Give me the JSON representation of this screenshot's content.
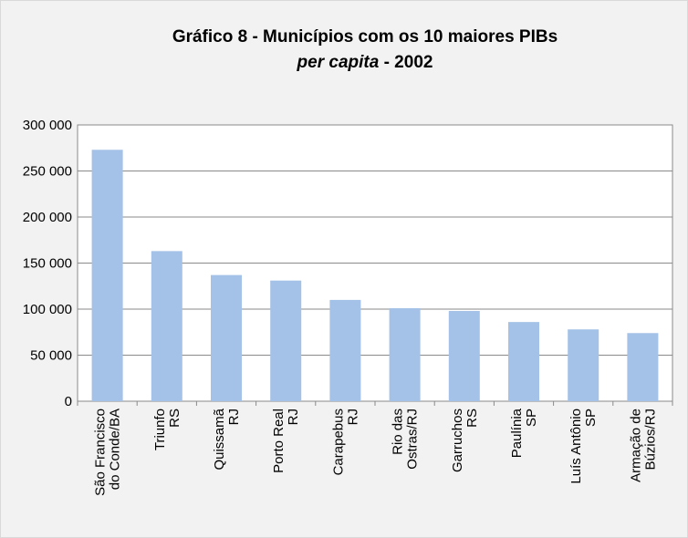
{
  "chart_data": {
    "type": "bar",
    "title": "Gráfico 8 - Municípios com os 10 maiores PIBs",
    "subtitle": [
      "per capita",
      " - 2002"
    ],
    "categories": [
      [
        "São Francisco",
        "do Conde/BA"
      ],
      [
        "Triunfo",
        "RS"
      ],
      [
        "Quissamã",
        "RJ"
      ],
      [
        "Porto Real",
        "RJ"
      ],
      [
        "Carapebus",
        "RJ"
      ],
      [
        "Rio das",
        "Ostras/RJ"
      ],
      [
        "Garruchos",
        "RS"
      ],
      [
        "Paulínia",
        "SP"
      ],
      [
        "Luís Antônio",
        "SP"
      ],
      [
        "Armação de",
        "Búzios/RJ"
      ]
    ],
    "values": [
      273000,
      163000,
      137000,
      131000,
      110000,
      101000,
      98000,
      86000,
      78000,
      74000
    ],
    "color": "#a4c2e7",
    "ylim": [
      0,
      300000
    ],
    "yticks": [
      0,
      {
        "value": 50000,
        "label": "50 000"
      },
      {
        "value": 100000,
        "label": "100 000"
      },
      {
        "value": 150000,
        "label": "150 000"
      },
      {
        "value": 200000,
        "label": "200 000"
      },
      {
        "value": 250000,
        "label": "250 000"
      },
      {
        "value": 300000,
        "label": "300 000"
      }
    ],
    "grid": true
  }
}
